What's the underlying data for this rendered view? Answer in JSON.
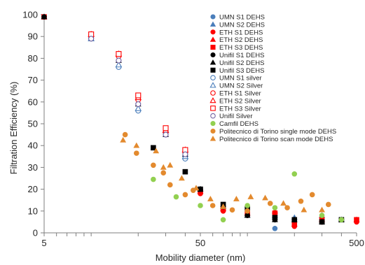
{
  "chart_data": {
    "type": "scatter",
    "title": "",
    "xlabel": "Mobility diameter (nm)",
    "ylabel": "Filtration Efficiency (%)",
    "xscale": "log",
    "xlim": [
      5,
      500
    ],
    "ylim": [
      0,
      100
    ],
    "xticks": [
      5,
      50,
      500
    ],
    "yticks": [
      0,
      10,
      20,
      30,
      40,
      50,
      60,
      70,
      80,
      90,
      100
    ],
    "grid": false,
    "legend_position": "top-right",
    "series": [
      {
        "name": "UMN S1 DEHS",
        "marker": "circle",
        "filled": true,
        "color": "#4a7ebb",
        "points": [
          [
            5,
            99
          ],
          [
            10,
            89
          ],
          [
            15,
            76
          ],
          [
            20,
            56
          ],
          [
            30,
            46
          ],
          [
            40,
            35
          ],
          [
            50,
            20
          ],
          [
            70,
            12
          ],
          [
            100,
            8
          ],
          [
            150,
            2
          ],
          [
            200,
            6
          ],
          [
            300,
            6
          ],
          [
            400,
            6
          ]
        ]
      },
      {
        "name": "UMN S2 DEHS",
        "marker": "triangle",
        "filled": true,
        "color": "#4a7ebb",
        "points": [
          [
            5,
            99
          ],
          [
            10,
            89
          ],
          [
            15,
            77
          ],
          [
            20,
            57
          ],
          [
            30,
            47
          ],
          [
            40,
            36
          ],
          [
            50,
            20
          ],
          [
            70,
            12
          ],
          [
            100,
            8
          ],
          [
            150,
            8
          ],
          [
            200,
            7
          ],
          [
            300,
            8
          ],
          [
            400,
            6
          ]
        ]
      },
      {
        "name": "ETH S1 DEHS",
        "marker": "circle",
        "filled": true,
        "color": "#ff0000",
        "points": [
          [
            5,
            99
          ],
          [
            10,
            90
          ],
          [
            15,
            81
          ],
          [
            20,
            61
          ],
          [
            30,
            46
          ],
          [
            40,
            37
          ],
          [
            50,
            18
          ],
          [
            70,
            10
          ],
          [
            100,
            8
          ],
          [
            150,
            9
          ],
          [
            200,
            3
          ],
          [
            300,
            5
          ],
          [
            500,
            5
          ]
        ]
      },
      {
        "name": "ETH S2 DEHS",
        "marker": "triangle",
        "filled": true,
        "color": "#ff0000",
        "points": [
          [
            5,
            99
          ],
          [
            10,
            91
          ],
          [
            15,
            82
          ],
          [
            20,
            62
          ],
          [
            30,
            47
          ],
          [
            40,
            38
          ],
          [
            50,
            19
          ],
          [
            70,
            11
          ],
          [
            100,
            9
          ],
          [
            150,
            10
          ],
          [
            200,
            4
          ],
          [
            300,
            6
          ],
          [
            500,
            6
          ]
        ]
      },
      {
        "name": "ETH S3 DEHS",
        "marker": "square",
        "filled": true,
        "color": "#ff0000",
        "points": [
          [
            5,
            99
          ],
          [
            10,
            90
          ],
          [
            15,
            82
          ],
          [
            20,
            62
          ],
          [
            30,
            47
          ],
          [
            40,
            37
          ],
          [
            50,
            19
          ],
          [
            70,
            11
          ],
          [
            100,
            9
          ],
          [
            150,
            9
          ],
          [
            200,
            4
          ],
          [
            300,
            6
          ],
          [
            500,
            6
          ]
        ]
      },
      {
        "name": "Unifil S1 DEHS",
        "marker": "circle",
        "filled": true,
        "color": "#000000",
        "points": [
          [
            5,
            99
          ],
          [
            10,
            89
          ],
          [
            15,
            79
          ],
          [
            20,
            59
          ],
          [
            30,
            45
          ],
          [
            40,
            36
          ],
          [
            50,
            20
          ],
          [
            70,
            12
          ],
          [
            100,
            8
          ],
          [
            150,
            6
          ],
          [
            200,
            6
          ],
          [
            300,
            5
          ],
          [
            400,
            6
          ]
        ]
      },
      {
        "name": "Unifil S2 DEHS",
        "marker": "triangle",
        "filled": true,
        "color": "#000000",
        "points": [
          [
            5,
            99
          ],
          [
            10,
            89
          ],
          [
            15,
            79
          ],
          [
            20,
            59
          ],
          [
            30,
            45
          ],
          [
            40,
            36
          ],
          [
            50,
            20
          ],
          [
            70,
            12
          ],
          [
            100,
            8
          ],
          [
            150,
            6
          ],
          [
            200,
            6
          ],
          [
            300,
            5
          ],
          [
            400,
            6
          ]
        ]
      },
      {
        "name": "Unifil S3 DEHS",
        "marker": "square",
        "filled": true,
        "color": "#000000",
        "points": [
          [
            25,
            39
          ],
          [
            40,
            28
          ],
          [
            50,
            20
          ],
          [
            70,
            13
          ],
          [
            100,
            11
          ],
          [
            150,
            7
          ],
          [
            200,
            6
          ],
          [
            300,
            5
          ],
          [
            400,
            6
          ]
        ]
      },
      {
        "name": "UMN S1 silver",
        "marker": "circle",
        "filled": false,
        "color": "#4a7ebb",
        "points": [
          [
            10,
            89
          ],
          [
            15,
            76
          ],
          [
            20,
            56
          ],
          [
            30,
            46
          ],
          [
            40,
            34
          ]
        ]
      },
      {
        "name": "UMN S2 Silver",
        "marker": "triangle",
        "filled": false,
        "color": "#4a7ebb",
        "points": [
          [
            10,
            89
          ],
          [
            15,
            77
          ],
          [
            20,
            57
          ],
          [
            30,
            47
          ],
          [
            40,
            35
          ]
        ]
      },
      {
        "name": "ETH S1 Silver",
        "marker": "circle",
        "filled": false,
        "color": "#ff0000",
        "points": [
          [
            10,
            90
          ],
          [
            15,
            81
          ],
          [
            20,
            61
          ],
          [
            30,
            46
          ],
          [
            40,
            37
          ]
        ]
      },
      {
        "name": "ETH S2 Silver",
        "marker": "triangle",
        "filled": false,
        "color": "#ff0000",
        "points": [
          [
            10,
            91
          ],
          [
            15,
            82
          ],
          [
            20,
            62
          ],
          [
            30,
            47
          ],
          [
            40,
            38
          ]
        ]
      },
      {
        "name": "ETH S3 Silver",
        "marker": "square",
        "filled": false,
        "color": "#ff0000",
        "points": [
          [
            10,
            91
          ],
          [
            15,
            82
          ],
          [
            20,
            63
          ],
          [
            30,
            48
          ],
          [
            40,
            38
          ]
        ]
      },
      {
        "name": "Unifil Silver",
        "marker": "circle",
        "filled": false,
        "color": "#7060a0",
        "points": [
          [
            10,
            89
          ],
          [
            15,
            79
          ],
          [
            20,
            59
          ],
          [
            30,
            45
          ],
          [
            40,
            36
          ]
        ]
      },
      {
        "name": "Camfil DEHS",
        "marker": "circle",
        "filled": true,
        "color": "#92d050",
        "points": [
          [
            25,
            24.5
          ],
          [
            35,
            16.5
          ],
          [
            50,
            12.5
          ],
          [
            70,
            6
          ],
          [
            100,
            12.5
          ],
          [
            150,
            11.5
          ],
          [
            200,
            27
          ],
          [
            300,
            8
          ],
          [
            400,
            6
          ]
        ]
      },
      {
        "name": "Politecnico di Torino single mode DEHS",
        "marker": "circle",
        "filled": true,
        "color": "#e38a2e",
        "points": [
          [
            16.5,
            45
          ],
          [
            19.5,
            36.5
          ],
          [
            25,
            31
          ],
          [
            29,
            27.5
          ],
          [
            32,
            22
          ],
          [
            40,
            17.5
          ],
          [
            45,
            19.5
          ],
          [
            60,
            12.5
          ],
          [
            80,
            10.5
          ],
          [
            100,
            10
          ],
          [
            140,
            13.5
          ],
          [
            180,
            11.5
          ],
          [
            220,
            14.5
          ],
          [
            260,
            17.5
          ],
          [
            330,
            13
          ]
        ]
      },
      {
        "name": "Politecnico di Torino  scan mode DEHS",
        "marker": "triangle",
        "filled": true,
        "color": "#e38a2e",
        "points": [
          [
            16,
            42.5
          ],
          [
            19.5,
            40
          ],
          [
            26,
            37.5
          ],
          [
            29,
            30
          ],
          [
            32,
            31
          ],
          [
            38,
            25
          ],
          [
            47,
            20.5
          ],
          [
            58,
            15.5
          ],
          [
            70,
            12
          ],
          [
            85,
            15.5
          ],
          [
            105,
            16.5
          ],
          [
            130,
            16
          ],
          [
            170,
            13.5
          ],
          [
            230,
            10.5
          ],
          [
            300,
            10.5
          ]
        ]
      }
    ]
  }
}
